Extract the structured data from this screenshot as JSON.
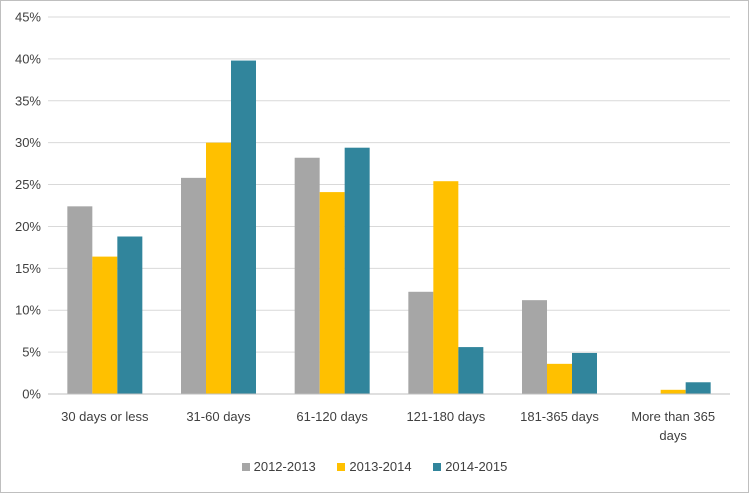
{
  "chart_data": {
    "type": "bar",
    "categories": [
      "30 days or less",
      "31-60 days",
      "61-120 days",
      "121-180 days",
      "181-365 days",
      "More than 365 days"
    ],
    "category_label_lines": [
      [
        "30 days or less"
      ],
      [
        "31-60 days"
      ],
      [
        "61-120 days"
      ],
      [
        "121-180 days"
      ],
      [
        "181-365 days"
      ],
      [
        "More than 365",
        "days"
      ]
    ],
    "series": [
      {
        "name": "2012-2013",
        "color": "#a6a6a6",
        "values": [
          22.4,
          25.8,
          28.2,
          12.2,
          11.2,
          0
        ]
      },
      {
        "name": "2013-2014",
        "color": "#ffc000",
        "values": [
          16.4,
          30.0,
          24.1,
          25.4,
          3.6,
          0.5
        ]
      },
      {
        "name": "2014-2015",
        "color": "#31859c",
        "values": [
          18.8,
          39.8,
          29.4,
          5.6,
          4.9,
          1.4
        ]
      }
    ],
    "ylim": [
      0,
      45
    ],
    "yticks": [
      "0%",
      "5%",
      "10%",
      "15%",
      "20%",
      "25%",
      "30%",
      "35%",
      "40%",
      "45%"
    ],
    "ytick_values": [
      0,
      5,
      10,
      15,
      20,
      25,
      30,
      35,
      40,
      45
    ],
    "gridlines": true,
    "legend_position": "bottom"
  }
}
